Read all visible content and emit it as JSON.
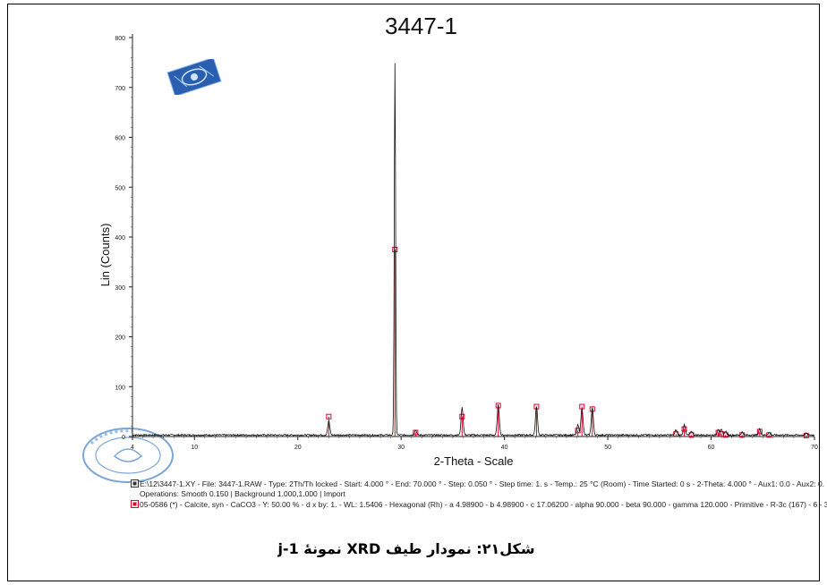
{
  "chart_data": {
    "type": "line",
    "title": "3447-1",
    "xlabel": "2-Theta - Scale",
    "ylabel": "Lin (Counts)",
    "xlim": [
      4,
      70
    ],
    "ylim": [
      0,
      800
    ],
    "x_ticks": [
      4,
      10,
      20,
      30,
      40,
      50,
      60,
      70
    ],
    "y_ticks": [
      0,
      100,
      200,
      300,
      400,
      500,
      600,
      700,
      800
    ],
    "series": [
      {
        "color": "#111111",
        "baseline": 3,
        "peaks": [
          {
            "x": 23.0,
            "y": 28
          },
          {
            "x": 29.4,
            "y": 745
          },
          {
            "x": 31.4,
            "y": 10
          },
          {
            "x": 35.9,
            "y": 55
          },
          {
            "x": 39.4,
            "y": 60
          },
          {
            "x": 43.1,
            "y": 58
          },
          {
            "x": 47.1,
            "y": 20
          },
          {
            "x": 47.5,
            "y": 55
          },
          {
            "x": 48.5,
            "y": 55
          },
          {
            "x": 56.6,
            "y": 10
          },
          {
            "x": 57.4,
            "y": 20
          },
          {
            "x": 58.1,
            "y": 8
          },
          {
            "x": 60.7,
            "y": 12
          },
          {
            "x": 61.0,
            "y": 10
          },
          {
            "x": 61.4,
            "y": 8
          },
          {
            "x": 63.0,
            "y": 6
          },
          {
            "x": 64.7,
            "y": 12
          },
          {
            "x": 65.6,
            "y": 5
          },
          {
            "x": 69.2,
            "y": 3
          }
        ]
      },
      {
        "color": "#e0002a",
        "sticks": [
          {
            "x": 23.0,
            "y": 40
          },
          {
            "x": 29.4,
            "y": 375
          },
          {
            "x": 31.4,
            "y": 8
          },
          {
            "x": 35.9,
            "y": 40
          },
          {
            "x": 39.4,
            "y": 62
          },
          {
            "x": 43.1,
            "y": 60
          },
          {
            "x": 47.1,
            "y": 12
          },
          {
            "x": 47.5,
            "y": 60
          },
          {
            "x": 48.5,
            "y": 55
          },
          {
            "x": 56.6,
            "y": 5
          },
          {
            "x": 57.4,
            "y": 15
          },
          {
            "x": 58.1,
            "y": 3
          },
          {
            "x": 60.7,
            "y": 8
          },
          {
            "x": 61.0,
            "y": 5
          },
          {
            "x": 61.4,
            "y": 3
          },
          {
            "x": 63.0,
            "y": 3
          },
          {
            "x": 64.7,
            "y": 10
          },
          {
            "x": 65.6,
            "y": 3
          },
          {
            "x": 69.2,
            "y": 2
          }
        ]
      }
    ],
    "legend": [
      "E:\\12\\3447-1.XY - File: 3447-1.RAW - Type: 2Th/Th locked - Start: 4.000 ° - End: 70.000 ° - Step: 0.050 ° - Step time: 1. s - Temp.: 25 °C (Room) - Time Started: 0 s - 2-Theta: 4.000 ° - Aux1: 0.0 - Aux2: 0.",
      "Operations: Smooth 0.150 | Background 1.000,1.000 | Import",
      "05-0586 (*) - Calcite, syn - CaCO3 - Y: 50.00 % - d x by: 1. - WL: 1.5406 - Hexagonal (Rh) - a 4.98900 - b 4.98900 - c 17.06200 - alpha 90.000 - beta 90.000 - gamma 120.000 - Primitive - R-3c (167) - 6 - 3"
    ]
  },
  "caption": "شکل۲۱: نمودار طیف XRD نمونۀ j-1"
}
